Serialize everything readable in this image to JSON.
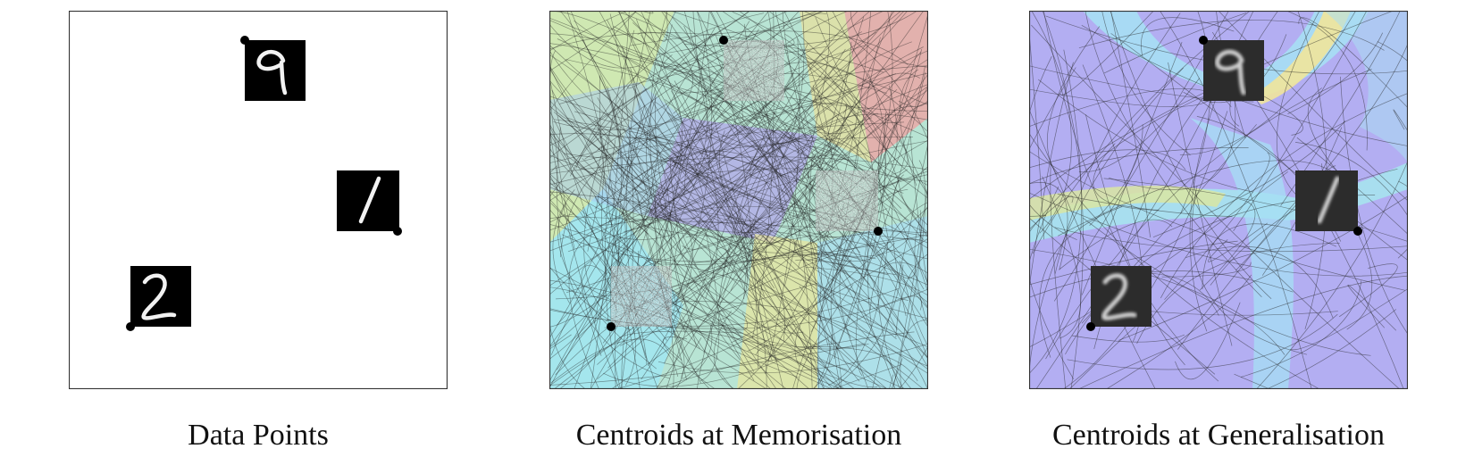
{
  "panels": [
    {
      "id": "data-points",
      "caption": "Data Points",
      "style": "mnist"
    },
    {
      "id": "memorisation",
      "caption": "Centroids at Memorisation",
      "style": "noise"
    },
    {
      "id": "generalisation",
      "caption": "Centroids at Generalisation",
      "style": "faded"
    }
  ],
  "digits": [
    {
      "label": "9"
    },
    {
      "label": "1"
    },
    {
      "label": "2"
    }
  ],
  "colors": {
    "frame": "#333333",
    "thumb_bg": "#000000",
    "region_palette_memorisation": [
      "#9ee8f0",
      "#b9e6c9",
      "#d8e9a6",
      "#e9e59a",
      "#f2c2a0",
      "#f08f96",
      "#b1a6ea",
      "#a9c6ee"
    ],
    "region_palette_generalisation": [
      "#b3aef2",
      "#a6dff4",
      "#c9e9b0",
      "#f0e49b",
      "#f2b3a8"
    ]
  }
}
